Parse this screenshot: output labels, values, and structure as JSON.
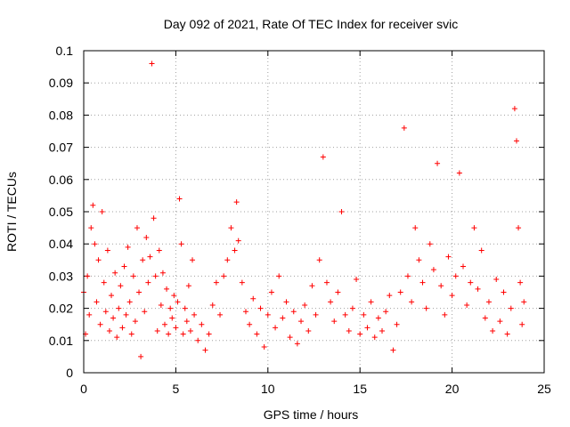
{
  "chart_data": {
    "type": "scatter",
    "title": "Day 092 of 2021, Rate Of TEC Index for receiver svic",
    "xlabel": "GPS time / hours",
    "ylabel": "ROTI / TECUs",
    "xlim": [
      0,
      25
    ],
    "ylim": [
      0,
      0.1
    ],
    "xticks": [
      0,
      5,
      10,
      15,
      20,
      25
    ],
    "xtick_labels": [
      "0",
      "5",
      "10",
      "15",
      "20",
      "25"
    ],
    "yticks": [
      0,
      0.01,
      0.02,
      0.03,
      0.04,
      0.05,
      0.06,
      0.07,
      0.08,
      0.09,
      0.1
    ],
    "ytick_labels": [
      "0",
      "0.01",
      "0.02",
      "0.03",
      "0.04",
      "0.05",
      "0.06",
      "0.07",
      "0.08",
      "0.09",
      "0.1"
    ],
    "grid": true,
    "marker": "+",
    "color": "#ff0000",
    "series": [
      {
        "points": [
          [
            0.0,
            0.025
          ],
          [
            0.1,
            0.012
          ],
          [
            0.2,
            0.03
          ],
          [
            0.3,
            0.018
          ],
          [
            0.4,
            0.045
          ],
          [
            0.5,
            0.052
          ],
          [
            0.6,
            0.04
          ],
          [
            0.7,
            0.022
          ],
          [
            0.8,
            0.035
          ],
          [
            0.9,
            0.015
          ],
          [
            1.0,
            0.05
          ],
          [
            1.1,
            0.028
          ],
          [
            1.2,
            0.019
          ],
          [
            1.3,
            0.038
          ],
          [
            1.4,
            0.013
          ],
          [
            1.5,
            0.024
          ],
          [
            1.6,
            0.017
          ],
          [
            1.7,
            0.031
          ],
          [
            1.8,
            0.011
          ],
          [
            1.9,
            0.02
          ],
          [
            2.0,
            0.027
          ],
          [
            2.1,
            0.014
          ],
          [
            2.2,
            0.033
          ],
          [
            2.3,
            0.018
          ],
          [
            2.4,
            0.039
          ],
          [
            2.5,
            0.022
          ],
          [
            2.6,
            0.012
          ],
          [
            2.7,
            0.03
          ],
          [
            2.8,
            0.016
          ],
          [
            2.9,
            0.045
          ],
          [
            3.0,
            0.025
          ],
          [
            3.1,
            0.005
          ],
          [
            3.2,
            0.035
          ],
          [
            3.3,
            0.019
          ],
          [
            3.4,
            0.042
          ],
          [
            3.5,
            0.028
          ],
          [
            3.6,
            0.036
          ],
          [
            3.7,
            0.096
          ],
          [
            3.8,
            0.048
          ],
          [
            3.9,
            0.03
          ],
          [
            4.0,
            0.013
          ],
          [
            4.1,
            0.038
          ],
          [
            4.2,
            0.021
          ],
          [
            4.3,
            0.031
          ],
          [
            4.4,
            0.015
          ],
          [
            4.5,
            0.026
          ],
          [
            4.6,
            0.012
          ],
          [
            4.7,
            0.02
          ],
          [
            4.8,
            0.017
          ],
          [
            4.9,
            0.024
          ],
          [
            5.0,
            0.014
          ],
          [
            5.1,
            0.022
          ],
          [
            5.2,
            0.054
          ],
          [
            5.3,
            0.04
          ],
          [
            5.4,
            0.012
          ],
          [
            5.5,
            0.02
          ],
          [
            5.6,
            0.016
          ],
          [
            5.7,
            0.027
          ],
          [
            5.8,
            0.013
          ],
          [
            5.9,
            0.035
          ],
          [
            6.0,
            0.018
          ],
          [
            6.2,
            0.01
          ],
          [
            6.4,
            0.015
          ],
          [
            6.6,
            0.007
          ],
          [
            6.8,
            0.012
          ],
          [
            7.0,
            0.021
          ],
          [
            7.2,
            0.028
          ],
          [
            7.4,
            0.018
          ],
          [
            7.6,
            0.03
          ],
          [
            7.8,
            0.035
          ],
          [
            8.0,
            0.045
          ],
          [
            8.2,
            0.038
          ],
          [
            8.3,
            0.053
          ],
          [
            8.4,
            0.041
          ],
          [
            8.6,
            0.028
          ],
          [
            8.8,
            0.019
          ],
          [
            9.0,
            0.015
          ],
          [
            9.2,
            0.023
          ],
          [
            9.4,
            0.012
          ],
          [
            9.6,
            0.02
          ],
          [
            9.8,
            0.008
          ],
          [
            10.0,
            0.018
          ],
          [
            10.2,
            0.025
          ],
          [
            10.4,
            0.014
          ],
          [
            10.6,
            0.03
          ],
          [
            10.8,
            0.017
          ],
          [
            11.0,
            0.022
          ],
          [
            11.2,
            0.011
          ],
          [
            11.4,
            0.019
          ],
          [
            11.6,
            0.009
          ],
          [
            11.8,
            0.016
          ],
          [
            12.0,
            0.021
          ],
          [
            12.2,
            0.013
          ],
          [
            12.4,
            0.027
          ],
          [
            12.6,
            0.018
          ],
          [
            12.8,
            0.035
          ],
          [
            13.0,
            0.067
          ],
          [
            13.2,
            0.028
          ],
          [
            13.4,
            0.022
          ],
          [
            13.6,
            0.016
          ],
          [
            13.8,
            0.025
          ],
          [
            14.0,
            0.05
          ],
          [
            14.2,
            0.018
          ],
          [
            14.4,
            0.013
          ],
          [
            14.6,
            0.02
          ],
          [
            14.8,
            0.029
          ],
          [
            15.0,
            0.012
          ],
          [
            15.2,
            0.018
          ],
          [
            15.4,
            0.014
          ],
          [
            15.6,
            0.022
          ],
          [
            15.8,
            0.011
          ],
          [
            16.0,
            0.017
          ],
          [
            16.2,
            0.013
          ],
          [
            16.4,
            0.019
          ],
          [
            16.6,
            0.024
          ],
          [
            16.8,
            0.007
          ],
          [
            17.0,
            0.015
          ],
          [
            17.2,
            0.025
          ],
          [
            17.4,
            0.076
          ],
          [
            17.6,
            0.03
          ],
          [
            17.8,
            0.022
          ],
          [
            18.0,
            0.045
          ],
          [
            18.2,
            0.035
          ],
          [
            18.4,
            0.028
          ],
          [
            18.6,
            0.02
          ],
          [
            18.8,
            0.04
          ],
          [
            19.0,
            0.032
          ],
          [
            19.2,
            0.065
          ],
          [
            19.4,
            0.027
          ],
          [
            19.6,
            0.018
          ],
          [
            19.8,
            0.036
          ],
          [
            20.0,
            0.024
          ],
          [
            20.2,
            0.03
          ],
          [
            20.4,
            0.062
          ],
          [
            20.6,
            0.033
          ],
          [
            20.8,
            0.021
          ],
          [
            21.0,
            0.028
          ],
          [
            21.2,
            0.045
          ],
          [
            21.4,
            0.026
          ],
          [
            21.6,
            0.038
          ],
          [
            21.8,
            0.017
          ],
          [
            22.0,
            0.022
          ],
          [
            22.2,
            0.013
          ],
          [
            22.4,
            0.029
          ],
          [
            22.6,
            0.016
          ],
          [
            22.8,
            0.025
          ],
          [
            23.0,
            0.012
          ],
          [
            23.2,
            0.02
          ],
          [
            23.4,
            0.082
          ],
          [
            23.5,
            0.072
          ],
          [
            23.6,
            0.045
          ],
          [
            23.7,
            0.028
          ],
          [
            23.8,
            0.015
          ],
          [
            23.9,
            0.022
          ]
        ]
      }
    ]
  }
}
